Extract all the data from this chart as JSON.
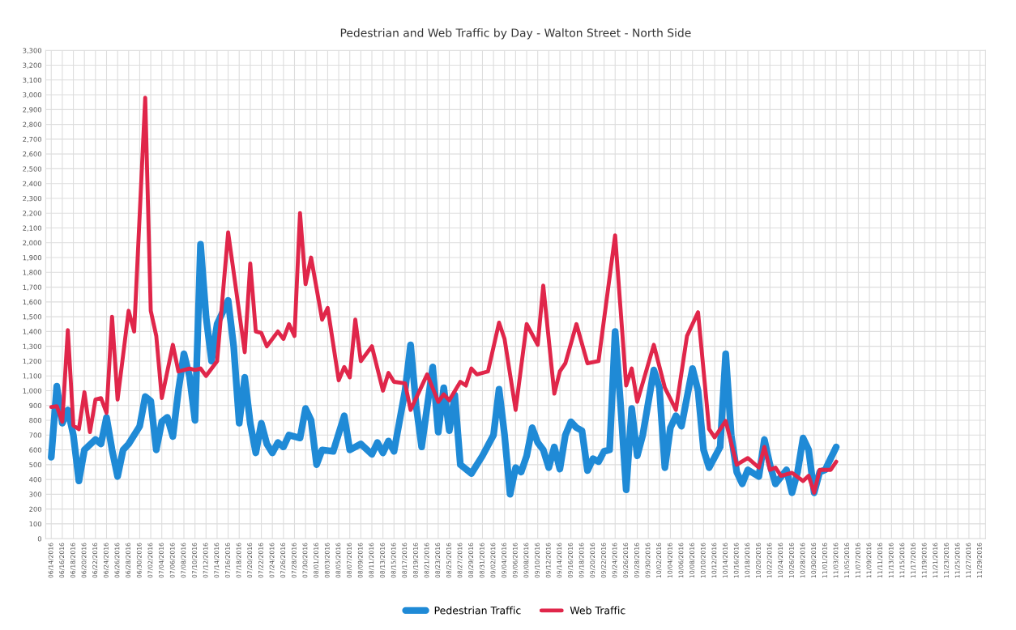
{
  "chart_data": {
    "type": "line",
    "title": "Pedestrian and Web Traffic by Day - Walton Street - North Side",
    "series": [
      {
        "name": "Pedestrian Traffic",
        "color": "#1f8ad6",
        "x": [
          "2016-06-14",
          "2016-06-15",
          "2016-06-16",
          "2016-06-17",
          "2016-06-18",
          "2016-06-19",
          "2016-06-20",
          "2016-06-22",
          "2016-06-23",
          "2016-06-24",
          "2016-06-25",
          "2016-06-26",
          "2016-06-27",
          "2016-06-28",
          "2016-06-30",
          "2016-07-01",
          "2016-07-02",
          "2016-07-03",
          "2016-07-04",
          "2016-07-05",
          "2016-07-06",
          "2016-07-07",
          "2016-07-08",
          "2016-07-09",
          "2016-07-10",
          "2016-07-11",
          "2016-07-12",
          "2016-07-13",
          "2016-07-14",
          "2016-07-16",
          "2016-07-17",
          "2016-07-18",
          "2016-07-19",
          "2016-07-20",
          "2016-07-21",
          "2016-07-22",
          "2016-07-23",
          "2016-07-24",
          "2016-07-25",
          "2016-07-26",
          "2016-07-27",
          "2016-07-29",
          "2016-07-30",
          "2016-07-31",
          "2016-08-01",
          "2016-08-02",
          "2016-08-04",
          "2016-08-06",
          "2016-08-07",
          "2016-08-09",
          "2016-08-11",
          "2016-08-12",
          "2016-08-13",
          "2016-08-14",
          "2016-08-15",
          "2016-08-17",
          "2016-08-18",
          "2016-08-19",
          "2016-08-20",
          "2016-08-22",
          "2016-08-23",
          "2016-08-24",
          "2016-08-25",
          "2016-08-26",
          "2016-08-27",
          "2016-08-29",
          "2016-08-31",
          "2016-09-02",
          "2016-09-03",
          "2016-09-04",
          "2016-09-05",
          "2016-09-06",
          "2016-09-07",
          "2016-09-08",
          "2016-09-09",
          "2016-09-10",
          "2016-09-11",
          "2016-09-12",
          "2016-09-13",
          "2016-09-14",
          "2016-09-15",
          "2016-09-16",
          "2016-09-17",
          "2016-09-18",
          "2016-09-19",
          "2016-09-20",
          "2016-09-21",
          "2016-09-22",
          "2016-09-23",
          "2016-09-24",
          "2016-09-25",
          "2016-09-26",
          "2016-09-27",
          "2016-09-28",
          "2016-09-29",
          "2016-10-01",
          "2016-10-02",
          "2016-10-03",
          "2016-10-04",
          "2016-10-05",
          "2016-10-06",
          "2016-10-08",
          "2016-10-09",
          "2016-10-10",
          "2016-10-11",
          "2016-10-12",
          "2016-10-13",
          "2016-10-14",
          "2016-10-15",
          "2016-10-16",
          "2016-10-17",
          "2016-10-18",
          "2016-10-20",
          "2016-10-21",
          "2016-10-22",
          "2016-10-23",
          "2016-10-25",
          "2016-10-26",
          "2016-10-27",
          "2016-10-28",
          "2016-10-29",
          "2016-10-30",
          "2016-10-31",
          "2016-11-01",
          "2016-11-03"
        ],
        "values": [
          550,
          1030,
          780,
          870,
          700,
          390,
          600,
          670,
          640,
          820,
          600,
          420,
          600,
          640,
          760,
          960,
          930,
          600,
          790,
          820,
          690,
          1000,
          1250,
          1100,
          800,
          1990,
          1500,
          1200,
          1450,
          1610,
          1300,
          780,
          1090,
          780,
          580,
          780,
          640,
          580,
          650,
          620,
          700,
          680,
          880,
          800,
          500,
          600,
          590,
          830,
          600,
          640,
          570,
          650,
          580,
          660,
          590,
          1000,
          1310,
          900,
          620,
          1160,
          720,
          1020,
          730,
          970,
          500,
          440,
          560,
          700,
          1010,
          700,
          300,
          480,
          450,
          560,
          750,
          650,
          600,
          480,
          620,
          470,
          700,
          790,
          750,
          730,
          460,
          540,
          520,
          590,
          600,
          1400,
          900,
          330,
          880,
          560,
          700,
          1140,
          1020,
          480,
          750,
          830,
          760,
          1150,
          1000,
          600,
          480,
          550,
          620,
          1250,
          700,
          450,
          370,
          465,
          420,
          670,
          500,
          370,
          465,
          310,
          450,
          680,
          600,
          310,
          450,
          465,
          620
        ]
      },
      {
        "name": "Web Traffic",
        "color": "#e0264a",
        "x": [
          "2016-06-14",
          "2016-06-15",
          "2016-06-16",
          "2016-06-17",
          "2016-06-18",
          "2016-06-19",
          "2016-06-20",
          "2016-06-21",
          "2016-06-22",
          "2016-06-23",
          "2016-06-24",
          "2016-06-25",
          "2016-06-26",
          "2016-06-28",
          "2016-06-29",
          "2016-07-01",
          "2016-07-02",
          "2016-07-03",
          "2016-07-04",
          "2016-07-06",
          "2016-07-07",
          "2016-07-09",
          "2016-07-10",
          "2016-07-11",
          "2016-07-12",
          "2016-07-14",
          "2016-07-16",
          "2016-07-19",
          "2016-07-20",
          "2016-07-21",
          "2016-07-22",
          "2016-07-23",
          "2016-07-25",
          "2016-07-26",
          "2016-07-27",
          "2016-07-28",
          "2016-07-29",
          "2016-07-30",
          "2016-07-31",
          "2016-08-02",
          "2016-08-03",
          "2016-08-05",
          "2016-08-06",
          "2016-08-07",
          "2016-08-08",
          "2016-08-09",
          "2016-08-11",
          "2016-08-13",
          "2016-08-14",
          "2016-08-15",
          "2016-08-17",
          "2016-08-18",
          "2016-08-21",
          "2016-08-23",
          "2016-08-24",
          "2016-08-25",
          "2016-08-27",
          "2016-08-28",
          "2016-08-29",
          "2016-08-30",
          "2016-09-01",
          "2016-09-03",
          "2016-09-04",
          "2016-09-06",
          "2016-09-08",
          "2016-09-10",
          "2016-09-11",
          "2016-09-13",
          "2016-09-14",
          "2016-09-15",
          "2016-09-17",
          "2016-09-19",
          "2016-09-21",
          "2016-09-24",
          "2016-09-26",
          "2016-09-27",
          "2016-09-28",
          "2016-10-01",
          "2016-10-03",
          "2016-10-05",
          "2016-10-07",
          "2016-10-08",
          "2016-10-09",
          "2016-10-11",
          "2016-10-12",
          "2016-10-14",
          "2016-10-16",
          "2016-10-18",
          "2016-10-20",
          "2016-10-21",
          "2016-10-22",
          "2016-10-23",
          "2016-10-24",
          "2016-10-26",
          "2016-10-28",
          "2016-10-29",
          "2016-10-30",
          "2016-10-31",
          "2016-11-02",
          "2016-11-03"
        ],
        "values": [
          890,
          895,
          790,
          1410,
          765,
          740,
          990,
          720,
          940,
          950,
          850,
          1500,
          940,
          1540,
          1400,
          2980,
          1540,
          1370,
          950,
          1310,
          1130,
          1150,
          1140,
          1150,
          1100,
          1200,
          2070,
          1260,
          1860,
          1400,
          1390,
          1300,
          1400,
          1350,
          1450,
          1370,
          2200,
          1720,
          1900,
          1480,
          1560,
          1070,
          1160,
          1090,
          1480,
          1200,
          1300,
          1000,
          1120,
          1060,
          1050,
          870,
          1110,
          925,
          975,
          935,
          1060,
          1035,
          1150,
          1110,
          1130,
          1460,
          1350,
          870,
          1450,
          1310,
          1710,
          980,
          1130,
          1185,
          1450,
          1185,
          1200,
          2050,
          1035,
          1150,
          925,
          1310,
          1020,
          870,
          1370,
          1450,
          1530,
          740,
          685,
          795,
          500,
          545,
          480,
          620,
          465,
          480,
          425,
          445,
          390,
          425,
          310,
          465,
          465,
          520
        ]
      }
    ],
    "xlim": [
      "2016-06-13",
      "2016-11-30"
    ],
    "xticks": [
      {
        "value": "2016-06-14",
        "label": "06/14/2016"
      },
      {
        "value": "2016-06-16",
        "label": "06/16/2016"
      },
      {
        "value": "2016-06-18",
        "label": "06/18/2016"
      },
      {
        "value": "2016-06-20",
        "label": "06/20/2016"
      },
      {
        "value": "2016-06-22",
        "label": "06/22/2016"
      },
      {
        "value": "2016-06-24",
        "label": "06/24/2016"
      },
      {
        "value": "2016-06-26",
        "label": "06/26/2016"
      },
      {
        "value": "2016-06-28",
        "label": "06/28/2016"
      },
      {
        "value": "2016-06-30",
        "label": "06/30/2016"
      },
      {
        "value": "2016-07-02",
        "label": "07/02/2016"
      },
      {
        "value": "2016-07-04",
        "label": "07/04/2016"
      },
      {
        "value": "2016-07-06",
        "label": "07/06/2016"
      },
      {
        "value": "2016-07-08",
        "label": "07/08/2016"
      },
      {
        "value": "2016-07-10",
        "label": "07/10/2016"
      },
      {
        "value": "2016-07-12",
        "label": "07/12/2016"
      },
      {
        "value": "2016-07-14",
        "label": "07/14/2016"
      },
      {
        "value": "2016-07-16",
        "label": "07/16/2016"
      },
      {
        "value": "2016-07-18",
        "label": "07/18/2016"
      },
      {
        "value": "2016-07-20",
        "label": "07/20/2016"
      },
      {
        "value": "2016-07-22",
        "label": "07/22/2016"
      },
      {
        "value": "2016-07-24",
        "label": "07/24/2016"
      },
      {
        "value": "2016-07-26",
        "label": "07/26/2016"
      },
      {
        "value": "2016-07-28",
        "label": "07/28/2016"
      },
      {
        "value": "2016-07-30",
        "label": "07/30/2016"
      },
      {
        "value": "2016-08-01",
        "label": "08/01/2016"
      },
      {
        "value": "2016-08-03",
        "label": "08/03/2016"
      },
      {
        "value": "2016-08-05",
        "label": "08/05/2016"
      },
      {
        "value": "2016-08-07",
        "label": "08/07/2016"
      },
      {
        "value": "2016-08-09",
        "label": "08/09/2016"
      },
      {
        "value": "2016-08-11",
        "label": "08/11/2016"
      },
      {
        "value": "2016-08-13",
        "label": "08/13/2016"
      },
      {
        "value": "2016-08-15",
        "label": "08/15/2016"
      },
      {
        "value": "2016-08-17",
        "label": "08/17/2016"
      },
      {
        "value": "2016-08-19",
        "label": "08/19/2016"
      },
      {
        "value": "2016-08-21",
        "label": "08/21/2016"
      },
      {
        "value": "2016-08-23",
        "label": "08/23/2016"
      },
      {
        "value": "2016-08-25",
        "label": "08/25/2016"
      },
      {
        "value": "2016-08-27",
        "label": "08/27/2016"
      },
      {
        "value": "2016-08-29",
        "label": "08/29/2016"
      },
      {
        "value": "2016-08-31",
        "label": "08/31/2016"
      },
      {
        "value": "2016-09-02",
        "label": "09/02/2016"
      },
      {
        "value": "2016-09-04",
        "label": "09/04/2016"
      },
      {
        "value": "2016-09-06",
        "label": "09/06/2016"
      },
      {
        "value": "2016-09-08",
        "label": "09/08/2016"
      },
      {
        "value": "2016-09-10",
        "label": "09/10/2016"
      },
      {
        "value": "2016-09-12",
        "label": "09/12/2016"
      },
      {
        "value": "2016-09-14",
        "label": "09/14/2016"
      },
      {
        "value": "2016-09-16",
        "label": "09/16/2016"
      },
      {
        "value": "2016-09-18",
        "label": "09/18/2016"
      },
      {
        "value": "2016-09-20",
        "label": "09/20/2016"
      },
      {
        "value": "2016-09-22",
        "label": "09/22/2016"
      },
      {
        "value": "2016-09-24",
        "label": "09/24/2016"
      },
      {
        "value": "2016-09-26",
        "label": "09/26/2016"
      },
      {
        "value": "2016-09-28",
        "label": "09/28/2016"
      },
      {
        "value": "2016-09-30",
        "label": "09/30/2016"
      },
      {
        "value": "2016-10-02",
        "label": "10/02/2016"
      },
      {
        "value": "2016-10-04",
        "label": "10/04/2016"
      },
      {
        "value": "2016-10-06",
        "label": "10/06/2016"
      },
      {
        "value": "2016-10-08",
        "label": "10/08/2016"
      },
      {
        "value": "2016-10-10",
        "label": "10/10/2016"
      },
      {
        "value": "2016-10-12",
        "label": "10/12/2016"
      },
      {
        "value": "2016-10-14",
        "label": "10/14/2016"
      },
      {
        "value": "2016-10-16",
        "label": "10/16/2016"
      },
      {
        "value": "2016-10-18",
        "label": "10/18/2016"
      },
      {
        "value": "2016-10-20",
        "label": "10/20/2016"
      },
      {
        "value": "2016-10-22",
        "label": "10/22/2016"
      },
      {
        "value": "2016-10-24",
        "label": "10/24/2016"
      },
      {
        "value": "2016-10-26",
        "label": "10/26/2016"
      },
      {
        "value": "2016-10-28",
        "label": "10/28/2016"
      },
      {
        "value": "2016-10-30",
        "label": "10/30/2016"
      },
      {
        "value": "2016-11-01",
        "label": "11/01/2016"
      },
      {
        "value": "2016-11-03",
        "label": "11/03/2016"
      },
      {
        "value": "2016-11-05",
        "label": "11/05/2016"
      },
      {
        "value": "2016-11-07",
        "label": "11/07/2016"
      },
      {
        "value": "2016-11-09",
        "label": "11/09/2016"
      },
      {
        "value": "2016-11-11",
        "label": "11/11/2016"
      },
      {
        "value": "2016-11-13",
        "label": "11/13/2016"
      },
      {
        "value": "2016-11-15",
        "label": "11/15/2016"
      },
      {
        "value": "2016-11-17",
        "label": "11/17/2016"
      },
      {
        "value": "2016-11-19",
        "label": "11/19/2016"
      },
      {
        "value": "2016-11-21",
        "label": "11/21/2016"
      },
      {
        "value": "2016-11-23",
        "label": "11/23/2016"
      },
      {
        "value": "2016-11-25",
        "label": "11/25/2016"
      },
      {
        "value": "2016-11-27",
        "label": "11/27/2016"
      },
      {
        "value": "2016-11-29",
        "label": "11/29/2016"
      }
    ],
    "ylim": [
      0,
      3300
    ],
    "yticks": [
      0,
      100,
      200,
      300,
      400,
      500,
      600,
      700,
      800,
      900,
      {
        "value": 1000,
        "label": "1,000"
      },
      {
        "value": 1100,
        "label": "1,100"
      },
      {
        "value": 1200,
        "label": "1,200"
      },
      {
        "value": 1300,
        "label": "1,300"
      },
      {
        "value": 1400,
        "label": "1,400"
      },
      {
        "value": 1500,
        "label": "1,500"
      },
      {
        "value": 1600,
        "label": "1,600"
      },
      {
        "value": 1700,
        "label": "1,700"
      },
      {
        "value": 1800,
        "label": "1,800"
      },
      {
        "value": 1900,
        "label": "1,900"
      },
      {
        "value": 2000,
        "label": "2,000"
      },
      {
        "value": 2100,
        "label": "2,100"
      },
      {
        "value": 2200,
        "label": "2,200"
      },
      {
        "value": 2300,
        "label": "2,300"
      },
      {
        "value": 2400,
        "label": "2,400"
      },
      {
        "value": 2500,
        "label": "2,500"
      },
      {
        "value": 2600,
        "label": "2,600"
      },
      {
        "value": 2700,
        "label": "2,700"
      },
      {
        "value": 2800,
        "label": "2,800"
      },
      {
        "value": 2900,
        "label": "2,900"
      },
      {
        "value": 3000,
        "label": "3,000"
      },
      {
        "value": 3100,
        "label": "3,100"
      },
      {
        "value": 3200,
        "label": "3,200"
      },
      {
        "value": 3300,
        "label": "3,300"
      }
    ],
    "grid": true,
    "legend": "bottom",
    "marker": "none",
    "line_style": "solid"
  }
}
